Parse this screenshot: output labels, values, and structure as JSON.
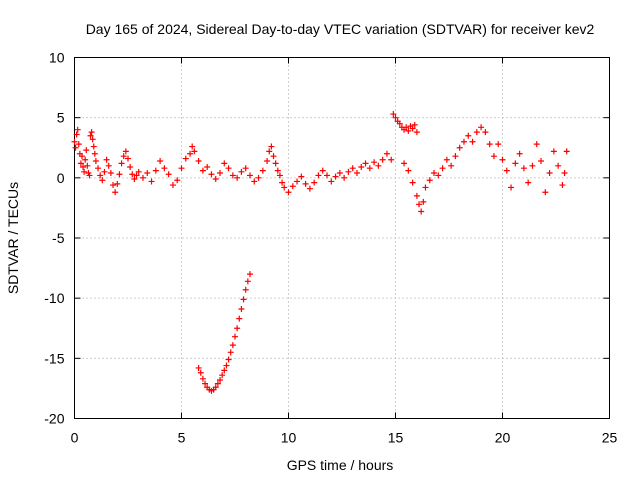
{
  "chart_data": {
    "type": "scatter",
    "title": "Day 165 of 2024, Sidereal Day-to-day VTEC variation (SDTVAR) for receiver kev2",
    "xlabel": "GPS time / hours",
    "ylabel": "SDTVAR / TECUs",
    "xlim": [
      0,
      25
    ],
    "ylim": [
      -20,
      10
    ],
    "xticks": [
      0,
      5,
      10,
      15,
      20,
      25
    ],
    "yticks": [
      -20,
      -15,
      -10,
      -5,
      0,
      5,
      10
    ],
    "grid": true,
    "marker": "+",
    "series_color": "#ff0000",
    "series": [
      {
        "name": "SDTVAR",
        "points": [
          [
            0.0,
            3.0
          ],
          [
            0.05,
            2.5
          ],
          [
            0.1,
            3.6
          ],
          [
            0.15,
            4.0
          ],
          [
            0.2,
            2.8
          ],
          [
            0.25,
            2.0
          ],
          [
            0.3,
            1.2
          ],
          [
            0.35,
            1.8
          ],
          [
            0.4,
            0.9
          ],
          [
            0.45,
            0.5
          ],
          [
            0.5,
            1.5
          ],
          [
            0.55,
            2.3
          ],
          [
            0.6,
            1.0
          ],
          [
            0.65,
            0.4
          ],
          [
            0.7,
            0.2
          ],
          [
            0.75,
            3.5
          ],
          [
            0.8,
            3.8
          ],
          [
            0.85,
            3.2
          ],
          [
            0.9,
            2.6
          ],
          [
            0.95,
            2.0
          ],
          [
            1.0,
            1.4
          ],
          [
            1.1,
            0.8
          ],
          [
            1.2,
            0.2
          ],
          [
            1.3,
            -0.2
          ],
          [
            1.4,
            0.5
          ],
          [
            1.5,
            1.5
          ],
          [
            1.6,
            1.0
          ],
          [
            1.7,
            0.4
          ],
          [
            1.8,
            -0.6
          ],
          [
            1.9,
            -1.2
          ],
          [
            2.0,
            -0.5
          ],
          [
            2.1,
            0.3
          ],
          [
            2.2,
            1.2
          ],
          [
            2.3,
            1.8
          ],
          [
            2.4,
            2.2
          ],
          [
            2.5,
            1.6
          ],
          [
            2.6,
            0.9
          ],
          [
            2.7,
            0.3
          ],
          [
            2.8,
            -0.1
          ],
          [
            2.9,
            0.2
          ],
          [
            3.0,
            0.5
          ],
          [
            3.2,
            0.0
          ],
          [
            3.4,
            0.4
          ],
          [
            3.6,
            -0.3
          ],
          [
            3.8,
            0.6
          ],
          [
            4.0,
            1.4
          ],
          [
            4.2,
            0.8
          ],
          [
            4.4,
            0.3
          ],
          [
            4.6,
            -0.6
          ],
          [
            4.8,
            -0.2
          ],
          [
            5.0,
            0.8
          ],
          [
            5.2,
            1.6
          ],
          [
            5.4,
            2.0
          ],
          [
            5.5,
            2.6
          ],
          [
            5.6,
            2.2
          ],
          [
            5.8,
            1.4
          ],
          [
            6.0,
            0.6
          ],
          [
            6.2,
            0.9
          ],
          [
            6.4,
            0.3
          ],
          [
            6.6,
            -0.1
          ],
          [
            6.8,
            0.4
          ],
          [
            7.0,
            1.2
          ],
          [
            7.2,
            0.8
          ],
          [
            7.4,
            0.2
          ],
          [
            7.6,
            0.0
          ],
          [
            7.8,
            0.5
          ],
          [
            8.0,
            0.8
          ],
          [
            8.2,
            0.2
          ],
          [
            8.4,
            -0.3
          ],
          [
            8.6,
            0.0
          ],
          [
            8.8,
            0.6
          ],
          [
            9.0,
            1.4
          ],
          [
            9.1,
            2.2
          ],
          [
            9.2,
            2.6
          ],
          [
            9.3,
            1.8
          ],
          [
            9.4,
            1.2
          ],
          [
            9.5,
            0.6
          ],
          [
            9.6,
            0.2
          ],
          [
            9.7,
            -0.4
          ],
          [
            9.8,
            -0.8
          ],
          [
            10.0,
            -1.2
          ],
          [
            10.2,
            -0.7
          ],
          [
            10.4,
            -0.3
          ],
          [
            10.6,
            0.1
          ],
          [
            10.8,
            -0.5
          ],
          [
            11.0,
            -0.9
          ],
          [
            11.2,
            -0.4
          ],
          [
            11.4,
            0.2
          ],
          [
            11.6,
            0.6
          ],
          [
            11.8,
            0.2
          ],
          [
            12.0,
            -0.3
          ],
          [
            12.2,
            0.1
          ],
          [
            12.4,
            0.4
          ],
          [
            12.6,
            0.0
          ],
          [
            12.8,
            0.5
          ],
          [
            13.0,
            0.8
          ],
          [
            13.2,
            0.4
          ],
          [
            13.4,
            0.9
          ],
          [
            13.6,
            1.2
          ],
          [
            13.8,
            0.8
          ],
          [
            14.0,
            1.3
          ],
          [
            14.2,
            1.0
          ],
          [
            14.4,
            1.5
          ],
          [
            14.6,
            2.0
          ],
          [
            14.8,
            1.5
          ],
          [
            14.9,
            5.3
          ],
          [
            15.0,
            5.0
          ],
          [
            15.1,
            4.7
          ],
          [
            15.2,
            4.5
          ],
          [
            15.3,
            4.2
          ],
          [
            15.4,
            4.0
          ],
          [
            15.5,
            4.2
          ],
          [
            15.6,
            3.9
          ],
          [
            15.7,
            4.3
          ],
          [
            15.8,
            4.1
          ],
          [
            15.9,
            4.4
          ],
          [
            16.0,
            3.8
          ],
          [
            15.4,
            1.2
          ],
          [
            15.6,
            0.6
          ],
          [
            15.8,
            -0.4
          ],
          [
            16.0,
            -1.5
          ],
          [
            16.1,
            -2.2
          ],
          [
            16.2,
            -2.8
          ],
          [
            16.3,
            -2.0
          ],
          [
            16.4,
            -0.8
          ],
          [
            16.6,
            -0.2
          ],
          [
            16.8,
            0.4
          ],
          [
            17.0,
            0.2
          ],
          [
            17.2,
            0.8
          ],
          [
            17.4,
            1.5
          ],
          [
            17.6,
            1.0
          ],
          [
            17.8,
            1.8
          ],
          [
            18.0,
            2.5
          ],
          [
            18.2,
            3.0
          ],
          [
            18.4,
            3.5
          ],
          [
            18.6,
            3.0
          ],
          [
            18.8,
            3.8
          ],
          [
            19.0,
            4.2
          ],
          [
            19.2,
            3.8
          ],
          [
            19.4,
            2.8
          ],
          [
            19.6,
            1.8
          ],
          [
            19.8,
            2.8
          ],
          [
            20.0,
            1.5
          ],
          [
            20.2,
            0.6
          ],
          [
            20.4,
            -0.8
          ],
          [
            20.6,
            1.2
          ],
          [
            20.8,
            2.0
          ],
          [
            21.0,
            0.8
          ],
          [
            21.2,
            -0.4
          ],
          [
            21.4,
            1.0
          ],
          [
            21.6,
            2.8
          ],
          [
            21.8,
            1.4
          ],
          [
            22.0,
            -1.2
          ],
          [
            22.2,
            0.4
          ],
          [
            22.4,
            2.2
          ],
          [
            22.6,
            1.0
          ],
          [
            22.8,
            -0.6
          ],
          [
            22.9,
            0.4
          ],
          [
            23.0,
            2.2
          ],
          [
            5.8,
            -15.8
          ],
          [
            5.9,
            -16.2
          ],
          [
            6.0,
            -16.7
          ],
          [
            6.1,
            -17.1
          ],
          [
            6.2,
            -17.4
          ],
          [
            6.3,
            -17.6
          ],
          [
            6.4,
            -17.7
          ],
          [
            6.5,
            -17.6
          ],
          [
            6.6,
            -17.4
          ],
          [
            6.7,
            -17.1
          ],
          [
            6.8,
            -16.8
          ],
          [
            6.9,
            -16.4
          ],
          [
            7.0,
            -16.0
          ],
          [
            7.1,
            -15.6
          ],
          [
            7.2,
            -15.1
          ],
          [
            7.3,
            -14.5
          ],
          [
            7.4,
            -13.9
          ],
          [
            7.5,
            -13.2
          ],
          [
            7.6,
            -12.5
          ],
          [
            7.7,
            -11.7
          ],
          [
            7.8,
            -10.9
          ],
          [
            7.9,
            -10.1
          ],
          [
            8.0,
            -9.3
          ],
          [
            8.1,
            -8.6
          ],
          [
            8.2,
            -8.0
          ]
        ]
      }
    ]
  }
}
